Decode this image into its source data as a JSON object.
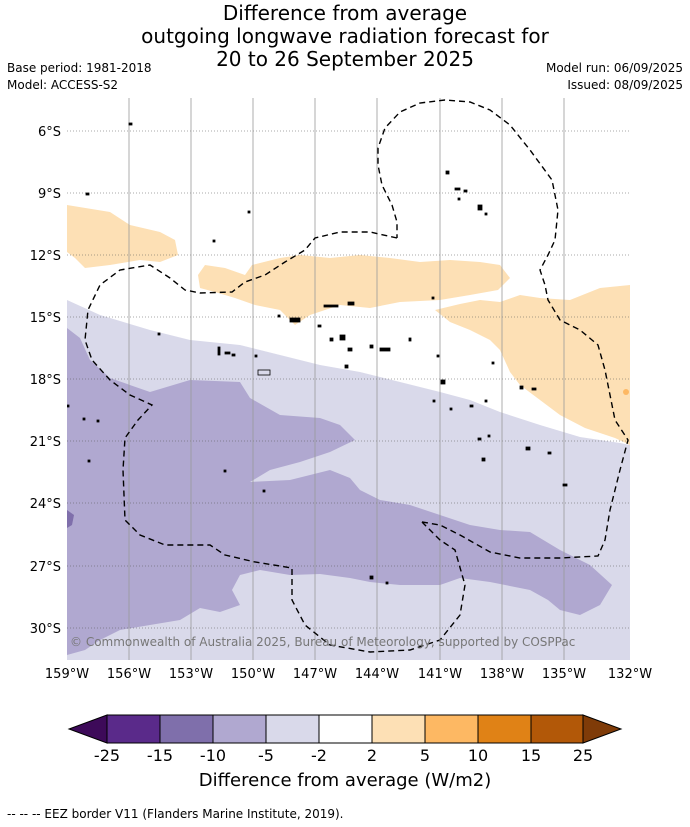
{
  "title": {
    "line1": "Difference from average",
    "line2": "outgoing longwave radiation forecast for",
    "line3": "20 to 26 September 2025"
  },
  "meta": {
    "base_period": "Base period: 1981-2018",
    "model": "Model: ACCESS-S2",
    "model_run": "Model run: 06/09/2025",
    "issued": "Issued: 08/09/2025"
  },
  "map": {
    "lat_labels": [
      "6°S",
      "9°S",
      "12°S",
      "15°S",
      "18°S",
      "21°S",
      "24°S",
      "27°S",
      "30°S"
    ],
    "lon_labels": [
      "159°W",
      "156°W",
      "153°W",
      "150°W",
      "147°W",
      "144°W",
      "141°W",
      "138°W",
      "135°W",
      "132°W"
    ],
    "copyright": "© Commonwealth of Australia 2025, Bureau of Meteorology, supported by COSPPac",
    "colors": {
      "neg25": "#3d0a59",
      "neg15_25": "#5a2a8a",
      "neg10_15": "#7f6fab",
      "neg5_10": "#b0a8d0",
      "neg2_5": "#d9d9ea",
      "neutral": "#ffffff",
      "pos2_5": "#fde0b5",
      "pos5_10": "#fdb863",
      "pos10_15": "#e08216",
      "pos15_25": "#b25808",
      "pos25": "#7f3b08"
    }
  },
  "colorbar": {
    "ticks": [
      "-25",
      "-15",
      "-10",
      "-5",
      "-2",
      "2",
      "5",
      "10",
      "15",
      "25"
    ],
    "label": "Difference from average (W/m2)"
  },
  "footer": "--  --  -- EEZ border V11 (Flanders Marine Institute, 2019)."
}
